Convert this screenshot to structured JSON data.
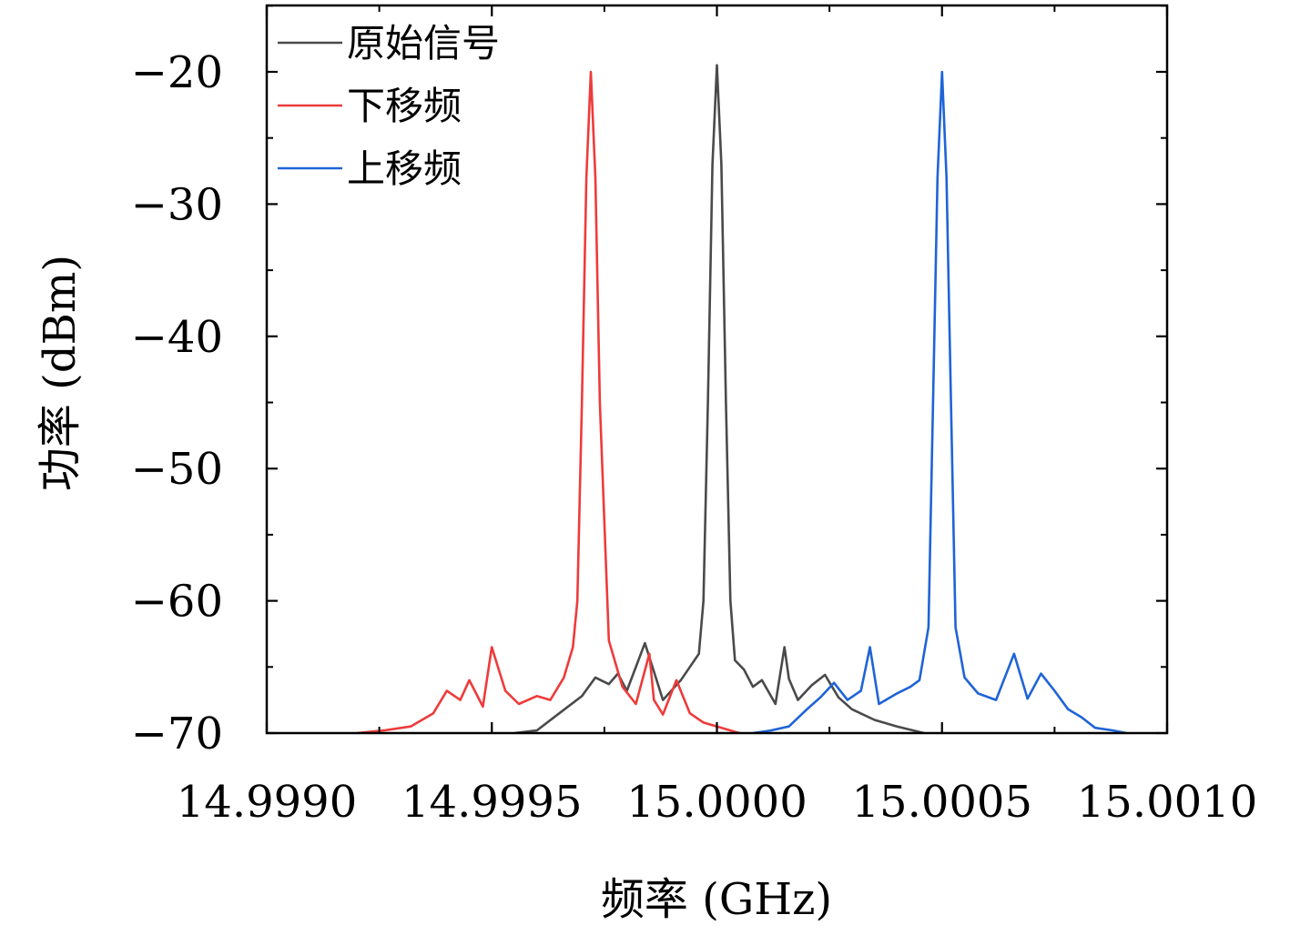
{
  "chart_data": {
    "type": "line",
    "xlabel": "频率 (GHz)",
    "ylabel": "功率 (dBm)",
    "xlim": [
      14.999,
      15.001
    ],
    "ylim": [
      -70,
      -15
    ],
    "xticks": [
      14.999,
      14.9995,
      15.0,
      15.0005,
      15.001
    ],
    "xtick_labels": [
      "14.9990",
      "14.9995",
      "15.0000",
      "15.0005",
      "15.0010"
    ],
    "yticks": [
      -20,
      -30,
      -40,
      -50,
      -60,
      -70
    ],
    "ytick_labels": [
      "−20",
      "−30",
      "−40",
      "−50",
      "−60",
      "−70"
    ],
    "legend_position": "top-left",
    "grid": false,
    "series": [
      {
        "name": "原始信号",
        "color": "#4a4a4a",
        "x": [
          14.99955,
          14.9996,
          14.99965,
          14.9997,
          14.99973,
          14.99976,
          14.99978,
          14.9998,
          14.99984,
          14.99988,
          14.99992,
          14.99994,
          14.99996,
          14.99997,
          14.99998,
          14.99999,
          15.0,
          15.00001,
          15.00002,
          15.00003,
          15.00004,
          15.00006,
          15.00008,
          15.0001,
          15.00013,
          15.00015,
          15.00016,
          15.00018,
          15.00021,
          15.00024,
          15.00027,
          15.0003,
          15.00035,
          15.0004,
          15.00046
        ],
        "y": [
          -70,
          -69.8,
          -68.5,
          -67.2,
          -65.8,
          -66.3,
          -65.5,
          -66.8,
          -63.2,
          -67.5,
          -66.0,
          -65.0,
          -64.0,
          -60.0,
          -45.0,
          -27.0,
          -19.5,
          -27.0,
          -45.0,
          -60.0,
          -64.5,
          -65.2,
          -66.5,
          -66.0,
          -67.8,
          -63.5,
          -65.9,
          -67.5,
          -66.4,
          -65.6,
          -67.3,
          -68.2,
          -69.0,
          -69.5,
          -70.0
        ]
      },
      {
        "name": "下移频",
        "color": "#ee3b3b",
        "x": [
          14.9992,
          14.99926,
          14.99932,
          14.99937,
          14.9994,
          14.99943,
          14.99945,
          14.99948,
          14.9995,
          14.99953,
          14.99956,
          14.9996,
          14.99963,
          14.99966,
          14.99968,
          14.99969,
          14.9997,
          14.99971,
          14.99972,
          14.99973,
          14.99974,
          14.99976,
          14.99979,
          14.99982,
          14.99985,
          14.99986,
          14.99988,
          14.99991,
          14.99994,
          14.99997,
          15.0,
          15.00005
        ],
        "y": [
          -70,
          -69.8,
          -69.5,
          -68.5,
          -66.8,
          -67.5,
          -66.0,
          -68.0,
          -63.5,
          -66.8,
          -67.8,
          -67.2,
          -67.5,
          -65.8,
          -63.5,
          -60.0,
          -45.0,
          -28.0,
          -20.0,
          -28.0,
          -45.0,
          -63.0,
          -66.5,
          -67.8,
          -64.0,
          -67.5,
          -68.6,
          -66.0,
          -68.5,
          -69.2,
          -69.5,
          -70.0
        ]
      },
      {
        "name": "上移频",
        "color": "#1f64d6",
        "x": [
          15.00008,
          15.00012,
          15.00016,
          15.0002,
          15.00023,
          15.00026,
          15.00029,
          15.00032,
          15.00034,
          15.00036,
          15.0004,
          15.00043,
          15.00045,
          15.00047,
          15.00048,
          15.00049,
          15.0005,
          15.00051,
          15.00052,
          15.00053,
          15.00055,
          15.00058,
          15.00062,
          15.00066,
          15.00069,
          15.00072,
          15.00075,
          15.00078,
          15.00081,
          15.00084,
          15.00088,
          15.00091
        ],
        "y": [
          -70,
          -69.8,
          -69.5,
          -68.2,
          -67.3,
          -66.2,
          -67.5,
          -66.8,
          -63.5,
          -67.8,
          -67.0,
          -66.5,
          -66.0,
          -62.0,
          -45.0,
          -28.0,
          -20.0,
          -28.0,
          -45.0,
          -62.0,
          -65.8,
          -67.0,
          -67.5,
          -64.0,
          -67.4,
          -65.5,
          -66.8,
          -68.2,
          -68.8,
          -69.6,
          -69.8,
          -70.0
        ]
      }
    ]
  }
}
